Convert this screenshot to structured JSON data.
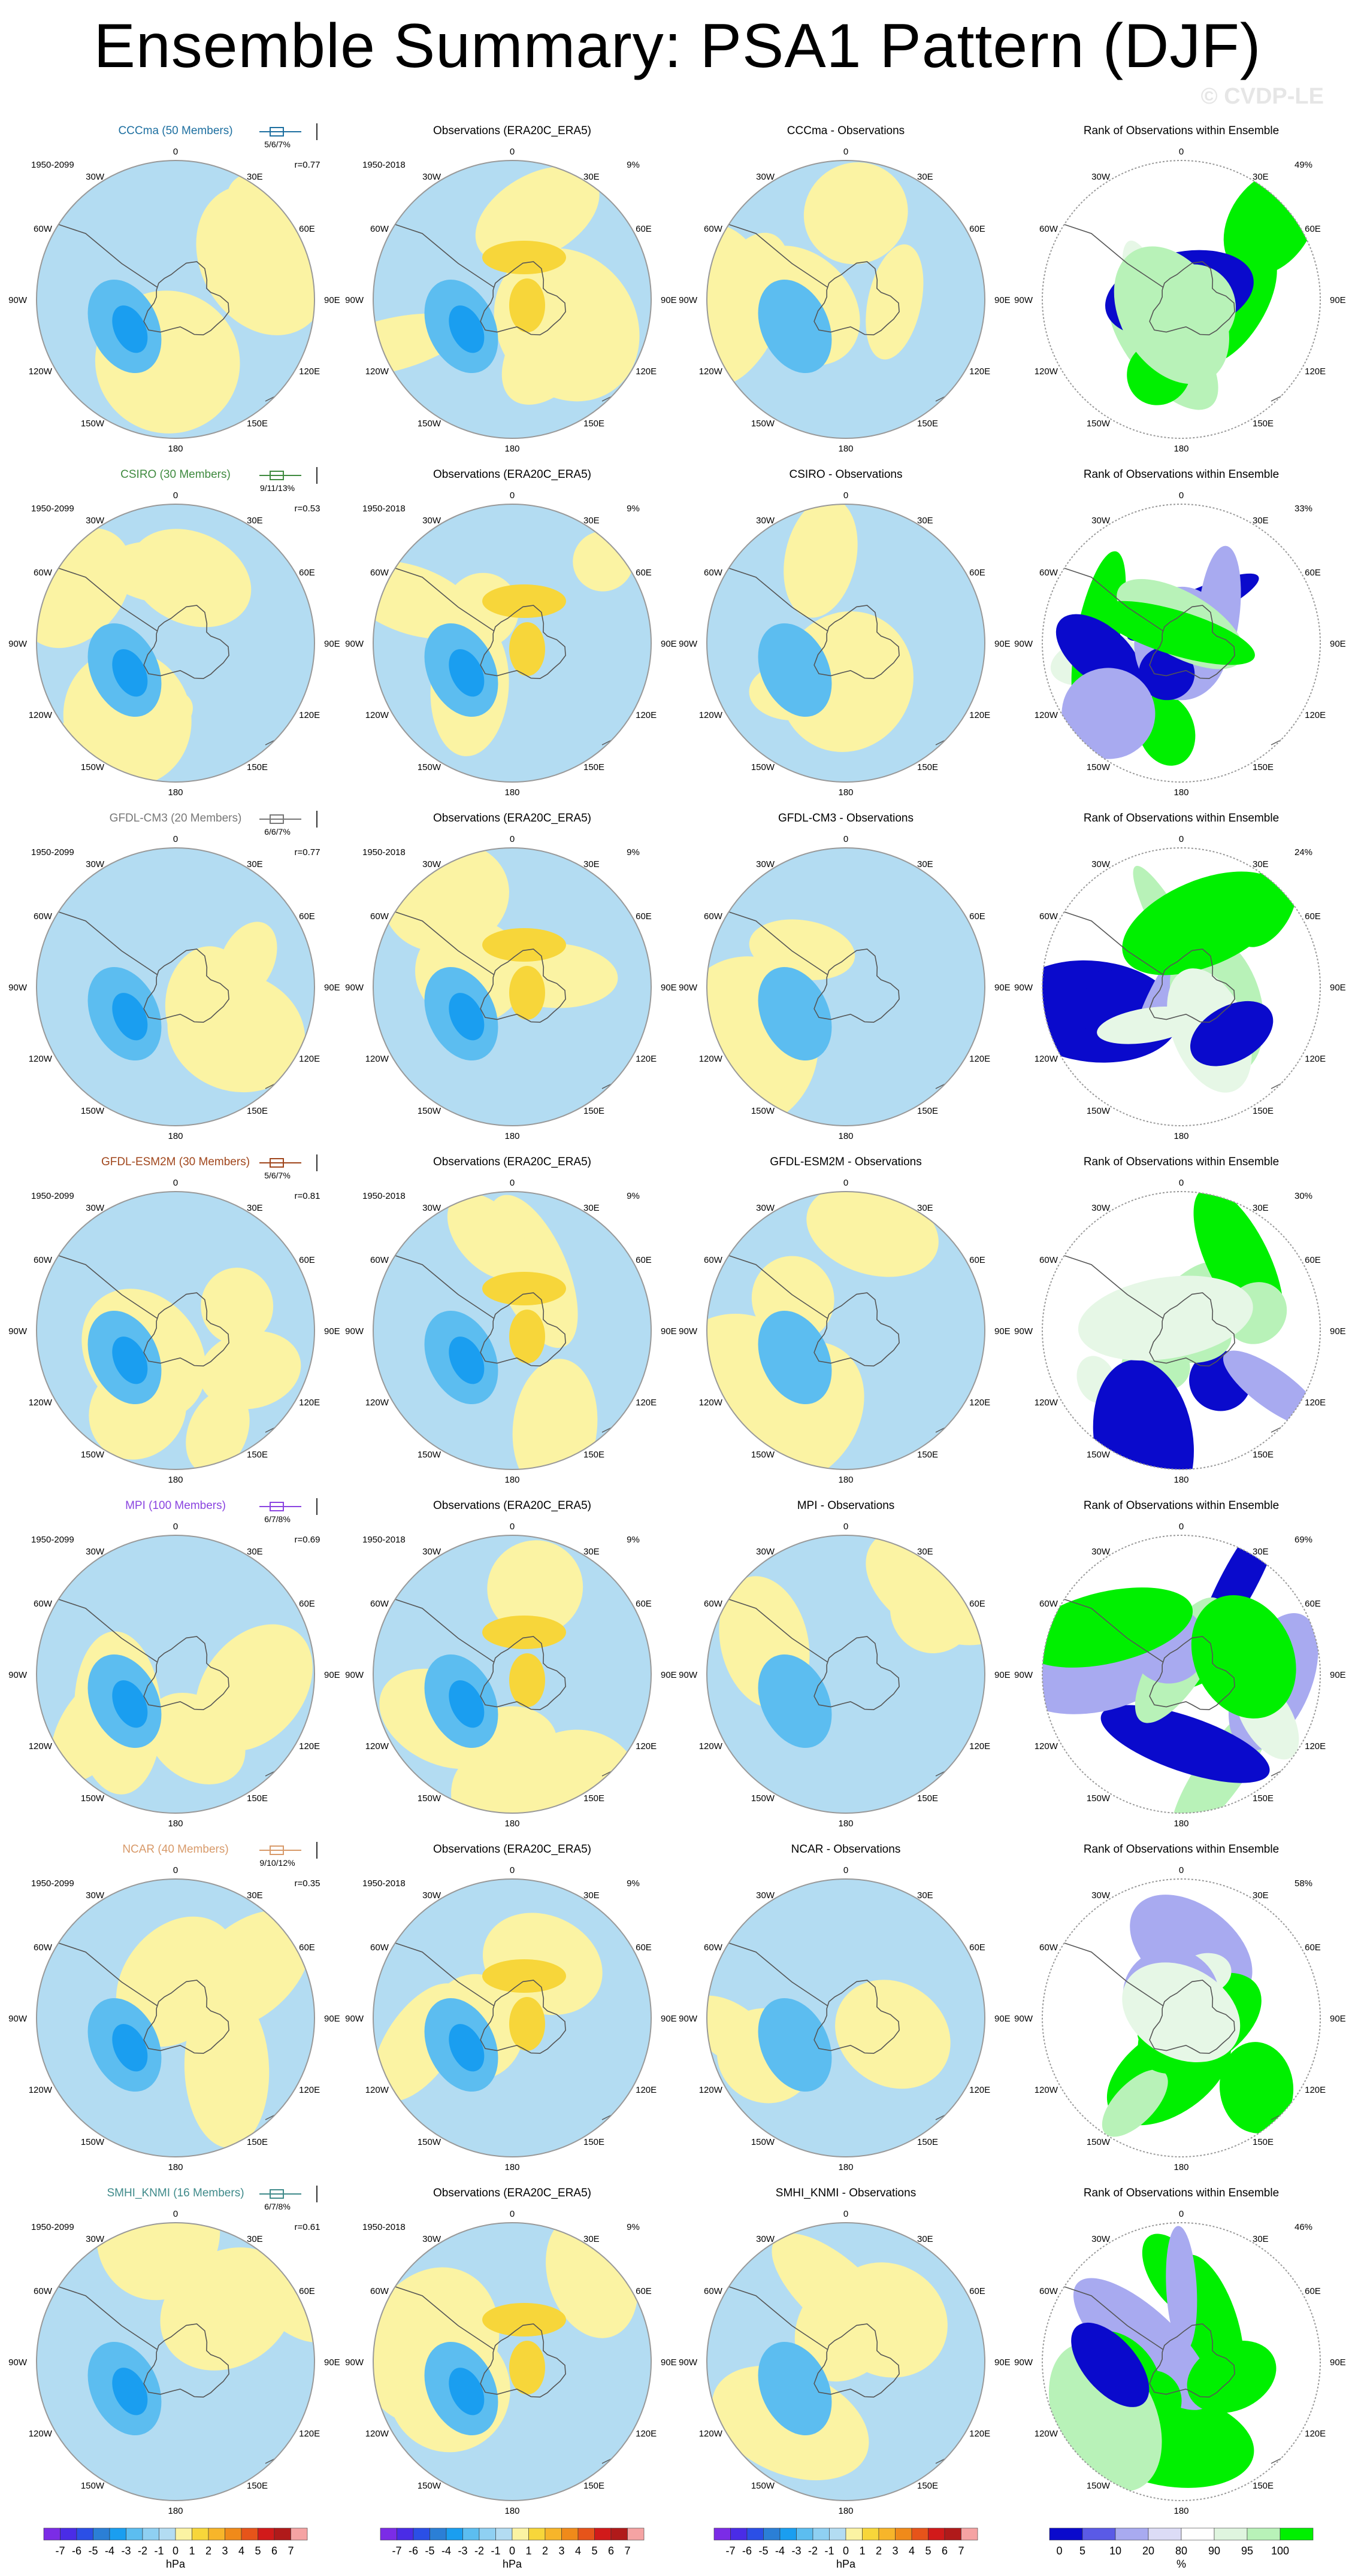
{
  "title": "Ensemble Summary: PSA1 Pattern (DJF)",
  "watermark": "© CVDP-LE",
  "colors": {
    "neg1": "#b3dcf2",
    "neg2": "#5cbdf0",
    "neg3": "#1a9ef0",
    "neg4": "#2b7fd6",
    "neg5": "#3f5fe0",
    "pos1": "#fbf3a3",
    "pos2": "#f7d63a",
    "pos3": "#f7b52a",
    "pos4": "#f08a1a",
    "rank_blue": "#0a0acc",
    "rank_lblue": "#a8aaf0",
    "rank_green": "#00f000",
    "rank_lgreen": "#b8f2b8",
    "rank_pale": "#e6f7e6",
    "coast": "#555555",
    "border": "#999999"
  },
  "coord_labels": [
    "0",
    "30E",
    "60E",
    "90E",
    "120E",
    "150E",
    "180",
    "150W",
    "120W",
    "90W",
    "60W",
    "30W"
  ],
  "rows": [
    {
      "model_title": "CCCma (50 Members)",
      "model_color": "#1d6fa0",
      "model_period": "1950-2099",
      "box_stats": "5/6/7%",
      "corr": "r=0.77",
      "obs_title": "Observations (ERA20C_ERA5)",
      "obs_period": "1950-2018",
      "obs_pct": "9%",
      "diff_title": "CCCma - Observations",
      "rank_title": "Rank of Observations within Ensemble",
      "rank_pct": "49%"
    },
    {
      "model_title": "CSIRO (30 Members)",
      "model_color": "#3f8a3f",
      "model_period": "1950-2099",
      "box_stats": "9/11/13%",
      "corr": "r=0.53",
      "obs_title": "Observations (ERA20C_ERA5)",
      "obs_period": "1950-2018",
      "obs_pct": "9%",
      "diff_title": "CSIRO - Observations",
      "rank_title": "Rank of Observations within Ensemble",
      "rank_pct": "33%"
    },
    {
      "model_title": "GFDL-CM3 (20 Members)",
      "model_color": "#777777",
      "model_period": "1950-2099",
      "box_stats": "6/6/7%",
      "corr": "r=0.77",
      "obs_title": "Observations (ERA20C_ERA5)",
      "obs_period": "1950-2018",
      "obs_pct": "9%",
      "diff_title": "GFDL-CM3 - Observations",
      "rank_title": "Rank of Observations within Ensemble",
      "rank_pct": "24%"
    },
    {
      "model_title": "GFDL-ESM2M (30 Members)",
      "model_color": "#a0461c",
      "model_period": "1950-2099",
      "box_stats": "5/6/7%",
      "corr": "r=0.81",
      "obs_title": "Observations (ERA20C_ERA5)",
      "obs_period": "1950-2018",
      "obs_pct": "9%",
      "diff_title": "GFDL-ESM2M - Observations",
      "rank_title": "Rank of Observations within Ensemble",
      "rank_pct": "30%"
    },
    {
      "model_title": "MPI (100 Members)",
      "model_color": "#8a44e0",
      "model_period": "1950-2099",
      "box_stats": "6/7/8%",
      "corr": "r=0.69",
      "obs_title": "Observations (ERA20C_ERA5)",
      "obs_period": "1950-2018",
      "obs_pct": "9%",
      "diff_title": "MPI - Observations",
      "rank_title": "Rank of Observations within Ensemble",
      "rank_pct": "69%"
    },
    {
      "model_title": "NCAR (40 Members)",
      "model_color": "#d89a6a",
      "model_period": "1950-2099",
      "box_stats": "9/10/12%",
      "corr": "r=0.35",
      "obs_title": "Observations (ERA20C_ERA5)",
      "obs_period": "1950-2018",
      "obs_pct": "9%",
      "diff_title": "NCAR - Observations",
      "rank_title": "Rank of Observations within Ensemble",
      "rank_pct": "58%"
    },
    {
      "model_title": "SMHI_KNMI (16 Members)",
      "model_color": "#3f8a8a",
      "model_period": "1950-2099",
      "box_stats": "6/7/8%",
      "corr": "r=0.61",
      "obs_title": "Observations (ERA20C_ERA5)",
      "obs_period": "1950-2018",
      "obs_pct": "9%",
      "diff_title": "SMHI_KNMI - Observations",
      "rank_title": "Rank of Observations within Ensemble",
      "rank_pct": "46%"
    }
  ],
  "hpa_colorbar": {
    "labels": [
      "-7",
      "-6",
      "-5",
      "-4",
      "-3",
      "-2",
      "-1",
      "0",
      "1",
      "2",
      "3",
      "4",
      "5",
      "6",
      "7"
    ],
    "colors": [
      "#7b2ce6",
      "#4a2ce6",
      "#2b4fe6",
      "#2b7fd6",
      "#1a9ef0",
      "#5cbdf0",
      "#8fd0f2",
      "#b3dcf2",
      "#fbf3a3",
      "#f7d63a",
      "#f7b52a",
      "#f08a1a",
      "#e6541a",
      "#d11a1a",
      "#b01a1a",
      "#f5a3a3"
    ],
    "unit": "hPa"
  },
  "rank_colorbar": {
    "labels": [
      "0",
      "5",
      "10",
      "20",
      "80",
      "90",
      "95",
      "100"
    ],
    "colors": [
      "#0a0acc",
      "#5a5ae6",
      "#a8aaf0",
      "#dcdcf6",
      "#ffffff",
      "#dff5df",
      "#b8f2b8",
      "#00f000"
    ],
    "unit": "%"
  },
  "chart_data": [
    {
      "type": "heatmap",
      "title": "Ensemble Summary: PSA1 Pattern (DJF)",
      "panels": "7 rows x 4 columns of south-polar stereographic maps",
      "columns": [
        "ensemble mean pattern",
        "Observations (ERA20C_ERA5)",
        "model - Observations",
        "Rank of Observations within Ensemble"
      ],
      "models": [
        "CCCma (50 Members)",
        "CSIRO (30 Members)",
        "GFDL-CM3 (20 Members)",
        "GFDL-ESM2M (30 Members)",
        "MPI (100 Members)",
        "NCAR (40 Members)",
        "SMHI_KNMI (16 Members)"
      ],
      "pattern_correlation": [
        0.77,
        0.53,
        0.77,
        0.81,
        0.69,
        0.35,
        0.61
      ],
      "percent_variance_explained": [
        "5/6/7%",
        "9/11/13%",
        "6/6/7%",
        "5/6/7%",
        "6/7/8%",
        "9/10/12%",
        "6/7/8%"
      ],
      "observed_percent_variance": "9%",
      "rank_area_percent": [
        49,
        33,
        24,
        30,
        69,
        58,
        46
      ],
      "pattern_colorbar": {
        "range": [
          -7,
          7
        ],
        "step": 1,
        "unit": "hPa"
      },
      "rank_colorbar": {
        "levels": [
          0,
          5,
          10,
          20,
          80,
          90,
          95,
          100
        ],
        "unit": "%"
      }
    }
  ]
}
